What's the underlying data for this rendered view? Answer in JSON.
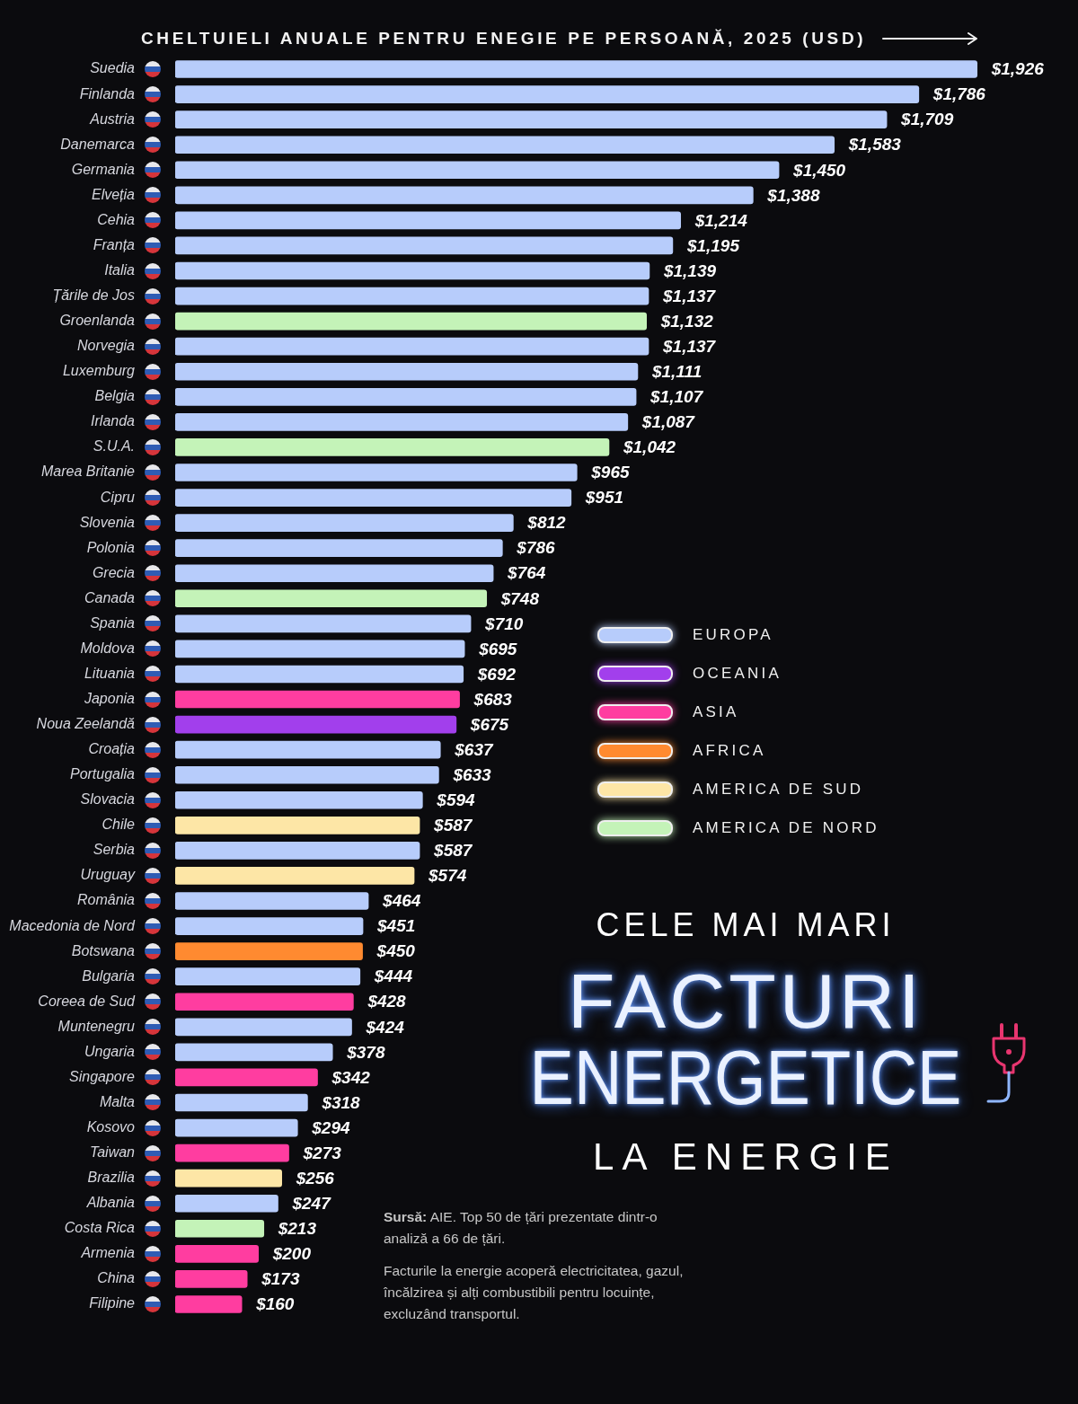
{
  "chart_data": {
    "type": "bar",
    "orientation": "horizontal",
    "title": "CELE MAI MARI FACTURI ENERGETICE LA ENERGIE",
    "xlabel": "CHELTUIELI ANUALE PENTRU ENEGIE PE PERSOANĂ, 2025 (USD)",
    "categories": [
      "Suedia",
      "Finlanda",
      "Austria",
      "Danemarca",
      "Germania",
      "Elveția",
      "Cehia",
      "Franța",
      "Italia",
      "Țările de Jos",
      "Groenlanda",
      "Norvegia",
      "Luxemburg",
      "Belgia",
      "Irlanda",
      "S.U.A.",
      "Marea Britanie",
      "Cipru",
      "Slovenia",
      "Polonia",
      "Grecia",
      "Canada",
      "Spania",
      "Moldova",
      "Lituania",
      "Japonia",
      "Noua Zeelandă",
      "Croația",
      "Portugalia",
      "Slovacia",
      "Chile",
      "Serbia",
      "Uruguay",
      "România",
      "Macedonia de Nord",
      "Botswana",
      "Bulgaria",
      "Coreea de Sud",
      "Muntenegru",
      "Ungaria",
      "Singapore",
      "Malta",
      "Kosovo",
      "Taiwan",
      "Brazilia",
      "Albania",
      "Costa Rica",
      "Armenia",
      "China",
      "Filipine"
    ],
    "series": [
      {
        "name": "EUROPA",
        "color": "#b7ccfb",
        "values": [
          1926,
          1786,
          1709,
          1583,
          1450,
          1388,
          1214,
          1195,
          1139,
          1137,
          null,
          1137,
          1111,
          1107,
          1087,
          null,
          965,
          951,
          812,
          786,
          764,
          null,
          710,
          695,
          692,
          null,
          null,
          637,
          633,
          594,
          null,
          587,
          null,
          464,
          451,
          null,
          444,
          null,
          424,
          378,
          null,
          318,
          294,
          null,
          null,
          247,
          null,
          null,
          null,
          null
        ],
        "value_labels": [
          "$1,926",
          "$1,786",
          "$1,709",
          "$1,583",
          "$1,450",
          "$1,388",
          "$1,214",
          "$1,195",
          "$1,139",
          "$1,137",
          null,
          "$1,137",
          "$1,111",
          "$1,107",
          "$1,087",
          null,
          "$965",
          "$951",
          "$812",
          "$786",
          "$764",
          null,
          "$710",
          "$695",
          "$692",
          null,
          null,
          "$637",
          "$633",
          "$594",
          null,
          "$587",
          null,
          "$464",
          "$451",
          null,
          "$444",
          null,
          "$424",
          "$378",
          null,
          "$318",
          "$294",
          null,
          null,
          "$247",
          null,
          null,
          null,
          null
        ]
      },
      {
        "name": "OCEANIA",
        "color": "#a23fec",
        "values": [
          null,
          null,
          null,
          null,
          null,
          null,
          null,
          null,
          null,
          null,
          null,
          null,
          null,
          null,
          null,
          null,
          null,
          null,
          null,
          null,
          null,
          null,
          null,
          null,
          null,
          null,
          675,
          null,
          null,
          null,
          null,
          null,
          null,
          null,
          null,
          null,
          null,
          null,
          null,
          null,
          null,
          null,
          null,
          null,
          null,
          null,
          null,
          null,
          null,
          null
        ],
        "value_labels": [
          null,
          null,
          null,
          null,
          null,
          null,
          null,
          null,
          null,
          null,
          null,
          null,
          null,
          null,
          null,
          null,
          null,
          null,
          null,
          null,
          null,
          null,
          null,
          null,
          null,
          null,
          "$675",
          null,
          null,
          null,
          null,
          null,
          null,
          null,
          null,
          null,
          null,
          null,
          null,
          null,
          null,
          null,
          null,
          null,
          null,
          null,
          null,
          null,
          null,
          null
        ]
      },
      {
        "name": "ASIA",
        "color": "#ff3da0",
        "values": [
          null,
          null,
          null,
          null,
          null,
          null,
          null,
          null,
          null,
          null,
          null,
          null,
          null,
          null,
          null,
          null,
          null,
          null,
          null,
          null,
          null,
          null,
          null,
          null,
          null,
          683,
          null,
          null,
          null,
          null,
          null,
          null,
          null,
          null,
          null,
          null,
          null,
          428,
          null,
          null,
          342,
          null,
          null,
          273,
          null,
          null,
          null,
          200,
          173,
          160
        ],
        "value_labels": [
          null,
          null,
          null,
          null,
          null,
          null,
          null,
          null,
          null,
          null,
          null,
          null,
          null,
          null,
          null,
          null,
          null,
          null,
          null,
          null,
          null,
          null,
          null,
          null,
          null,
          "$683",
          null,
          null,
          null,
          null,
          null,
          null,
          null,
          null,
          null,
          null,
          null,
          "$428",
          null,
          null,
          "$342",
          null,
          null,
          "$273",
          null,
          null,
          null,
          "$200",
          "$173",
          "$160"
        ]
      },
      {
        "name": "AFRICA",
        "color": "#ff8a30",
        "values": [
          null,
          null,
          null,
          null,
          null,
          null,
          null,
          null,
          null,
          null,
          null,
          null,
          null,
          null,
          null,
          null,
          null,
          null,
          null,
          null,
          null,
          null,
          null,
          null,
          null,
          null,
          null,
          null,
          null,
          null,
          null,
          null,
          null,
          null,
          null,
          450,
          null,
          null,
          null,
          null,
          null,
          null,
          null,
          null,
          null,
          null,
          null,
          null,
          null,
          null
        ],
        "value_labels": [
          null,
          null,
          null,
          null,
          null,
          null,
          null,
          null,
          null,
          null,
          null,
          null,
          null,
          null,
          null,
          null,
          null,
          null,
          null,
          null,
          null,
          null,
          null,
          null,
          null,
          null,
          null,
          null,
          null,
          null,
          null,
          null,
          null,
          null,
          null,
          "$450",
          null,
          null,
          null,
          null,
          null,
          null,
          null,
          null,
          null,
          null,
          null,
          null,
          null,
          null
        ]
      },
      {
        "name": "AMERICA DE SUD",
        "color": "#fde6a6",
        "values": [
          null,
          null,
          null,
          null,
          null,
          null,
          null,
          null,
          null,
          null,
          null,
          null,
          null,
          null,
          null,
          null,
          null,
          null,
          null,
          null,
          null,
          null,
          null,
          null,
          null,
          null,
          null,
          null,
          null,
          null,
          587,
          null,
          574,
          null,
          null,
          null,
          null,
          null,
          null,
          null,
          null,
          null,
          null,
          null,
          256,
          null,
          null,
          null,
          null,
          null
        ],
        "value_labels": [
          null,
          null,
          null,
          null,
          null,
          null,
          null,
          null,
          null,
          null,
          null,
          null,
          null,
          null,
          null,
          null,
          null,
          null,
          null,
          null,
          null,
          null,
          null,
          null,
          null,
          null,
          null,
          null,
          null,
          null,
          "$587",
          null,
          "$574",
          null,
          null,
          null,
          null,
          null,
          null,
          null,
          null,
          null,
          null,
          null,
          "$256",
          null,
          null,
          null,
          null,
          null
        ]
      },
      {
        "name": "AMERICA DE NORD",
        "color": "#c4f3b8",
        "values": [
          null,
          null,
          null,
          null,
          null,
          null,
          null,
          null,
          null,
          null,
          1132,
          null,
          null,
          null,
          null,
          1042,
          null,
          null,
          null,
          null,
          null,
          748,
          null,
          null,
          null,
          null,
          null,
          null,
          null,
          null,
          null,
          null,
          null,
          null,
          null,
          null,
          null,
          null,
          null,
          null,
          null,
          null,
          null,
          null,
          null,
          null,
          213,
          null,
          null,
          null
        ],
        "value_labels": [
          null,
          null,
          null,
          null,
          null,
          null,
          null,
          null,
          null,
          null,
          "$1,132",
          null,
          null,
          null,
          null,
          "$1,042",
          null,
          null,
          null,
          null,
          null,
          "$748",
          null,
          null,
          null,
          null,
          null,
          null,
          null,
          null,
          null,
          null,
          null,
          null,
          null,
          null,
          null,
          null,
          null,
          null,
          null,
          null,
          null,
          null,
          null,
          null,
          "$213",
          null,
          null,
          null
        ]
      }
    ],
    "tick_labels": "y",
    "legend": "right",
    "annotations": [
      "Sursă: AIE. Top 50 de țări prezentate dintr-o analiză a 66 de țări.",
      "Facturile la energie acoperă electricitatea, gazul, încălzirea și alți combustibili pentru locuințe, excluzând transportul."
    ]
  }
}
